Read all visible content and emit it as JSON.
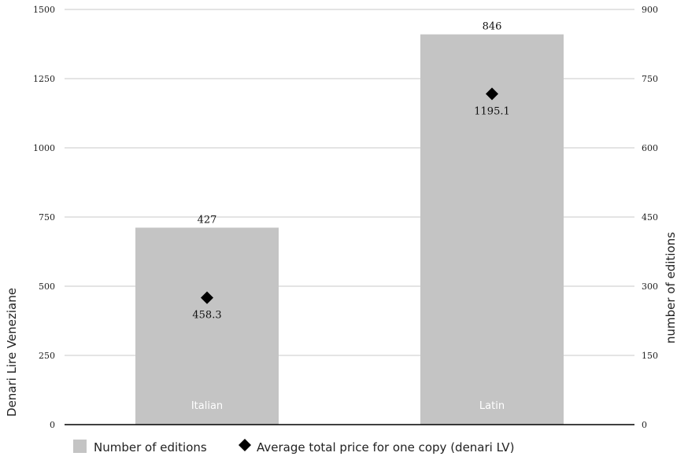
{
  "chart_data": {
    "type": "bar",
    "categories": [
      "Italian",
      "Latin"
    ],
    "series": [
      {
        "name": "Number of editions",
        "kind": "bar",
        "axis": "right",
        "values": [
          427,
          846
        ],
        "value_labels": [
          "427",
          "846"
        ],
        "color": "#c4c4c4"
      },
      {
        "name": "Average total price for one copy (denari LV)",
        "kind": "marker",
        "marker": "diamond",
        "axis": "left",
        "values": [
          458.3,
          1195.1
        ],
        "value_labels": [
          "458.3",
          "1195.1"
        ],
        "color": "#000000"
      }
    ],
    "left_axis": {
      "label": "Denari Lire Veneziane",
      "range": [
        0,
        1500
      ],
      "ticks": [
        "0",
        "250",
        "500",
        "750",
        "1000",
        "1250",
        "1500"
      ]
    },
    "right_axis": {
      "label": "number of editions",
      "range": [
        0,
        900
      ],
      "ticks": [
        "0",
        "150",
        "300",
        "450",
        "600",
        "750",
        "900"
      ]
    },
    "grid": true,
    "legend_position": "bottom-left"
  }
}
